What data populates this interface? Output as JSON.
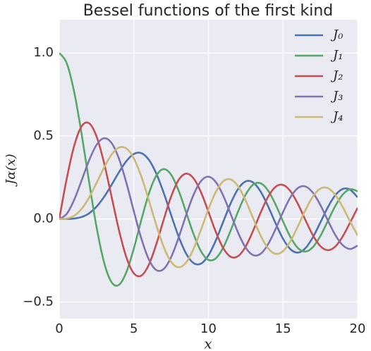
{
  "chart_data": {
    "type": "line",
    "title": "Bessel functions of the first kind",
    "xlabel": "x",
    "ylabel": "Jα(x)",
    "x": [
      0,
      0.5,
      1,
      1.5,
      2,
      2.5,
      3,
      3.5,
      4,
      4.5,
      5,
      5.5,
      6,
      6.5,
      7,
      7.5,
      8,
      8.5,
      9,
      9.5,
      10,
      10.5,
      11,
      11.5,
      12,
      12.5,
      13,
      13.5,
      14,
      14.5,
      15,
      15.5,
      16,
      16.5,
      17,
      17.5,
      18,
      18.5,
      19,
      19.5,
      20
    ],
    "series": [
      {
        "name": "J₀",
        "color": "#4c72b0",
        "values": [
          0,
          0.0002,
          0.0025,
          0.0118,
          0.034,
          0.074,
          0.1322,
          0.2043,
          0.2811,
          0.3485,
          0.3913,
          0.3967,
          0.3576,
          0.2747,
          0.1578,
          0.0238,
          -0.1053,
          -0.2078,
          -0.2654,
          -0.2691,
          -0.2195,
          -0.1285,
          -0.0152,
          0.0961,
          0.1824,
          0.2263,
          0.2193,
          0.165,
          0.0763,
          -0.0258,
          -0.1191,
          -0.1824,
          -0.2027,
          -0.1764,
          -0.1108,
          -0.022,
          0.0696,
          0.1426,
          0.1807,
          0.176,
          0.1306
        ]
      },
      {
        "name": "J₁",
        "color": "#55a868",
        "values": [
          1,
          0.9385,
          0.7652,
          0.5118,
          0.2239,
          -0.0484,
          -0.2601,
          -0.3801,
          -0.3971,
          -0.3205,
          -0.1776,
          -0.0068,
          0.1506,
          0.2601,
          0.3001,
          0.2663,
          0.1717,
          0.0419,
          -0.0903,
          -0.1939,
          -0.2462,
          -0.2368,
          -0.1713,
          -0.0677,
          0.0477,
          0.147,
          0.207,
          0.2151,
          0.1711,
          0.0877,
          -0.0142,
          -0.1092,
          -0.175,
          -0.1964,
          -0.1699,
          -0.1033,
          -0.0134,
          0.0773,
          0.1467,
          0.1789,
          0.167
        ]
      },
      {
        "name": "J₂",
        "color": "#c44e52",
        "values": [
          0,
          0.2423,
          0.4401,
          0.5579,
          0.5767,
          0.4971,
          0.3391,
          0.1374,
          -0.066,
          -0.2311,
          -0.3276,
          -0.3414,
          -0.2767,
          -0.1538,
          -0.0047,
          0.1352,
          0.2346,
          0.2731,
          0.2453,
          0.1613,
          0.0431,
          -0.0788,
          -0.1767,
          -0.2282,
          -0.2232,
          -0.1654,
          -0.0703,
          0.0381,
          0.1333,
          0.1932,
          0.205,
          0.1672,
          0.0904,
          -0.0058,
          -0.0976,
          -0.1633,
          -0.188,
          -0.1666,
          -0.1057,
          -0.0209,
          0.0668
        ]
      },
      {
        "name": "J₃",
        "color": "#8172b2",
        "values": [
          0,
          0.0307,
          0.115,
          0.2321,
          0.3528,
          0.4461,
          0.4862,
          0.4586,
          0.3641,
          0.2178,
          0.0466,
          -0.1173,
          -0.2428,
          -0.3074,
          -0.3014,
          -0.2302,
          -0.113,
          0.0224,
          0.1448,
          0.2279,
          0.2548,
          0.2218,
          0.1392,
          0.028,
          -0.0849,
          -0.1735,
          -0.2178,
          -0.2095,
          -0.1521,
          -0.0611,
          0.0415,
          0.1308,
          0.1863,
          0.1957,
          0.1584,
          0.0846,
          -0.0075,
          -0.0953,
          -0.1578,
          -0.181,
          -0.1603
        ]
      },
      {
        "name": "J₄",
        "color": "#ccb974",
        "values": [
          0,
          0.0026,
          0.0196,
          0.061,
          0.1289,
          0.2167,
          0.3092,
          0.3867,
          0.4301,
          0.4247,
          0.3649,
          0.2561,
          0.1148,
          -0.0354,
          -0.1675,
          -0.258,
          -0.2911,
          -0.2626,
          -0.1809,
          -0.0653,
          0.0588,
          0.1633,
          0.2273,
          0.2379,
          0.1949,
          0.1099,
          0.0033,
          -0.1002,
          -0.1768,
          -0.2101,
          -0.1939,
          -0.1334,
          -0.0438,
          0.0532,
          0.1349,
          0.1826,
          0.1863,
          0.146,
          0.0725,
          -0.0162,
          -0.0989
        ]
      }
    ],
    "xlim": [
      0,
      20
    ],
    "xticks": [
      0,
      5,
      10,
      15,
      20
    ],
    "ylim": [
      -0.6,
      1.2
    ],
    "yticks": [
      {
        "value": -0.5,
        "label": "−0.5"
      },
      {
        "value": 0,
        "label": "0.0"
      },
      {
        "value": 0.5,
        "label": "0.5"
      },
      {
        "value": 1,
        "label": "1.0"
      }
    ],
    "grid": true,
    "legend": "upper right"
  }
}
